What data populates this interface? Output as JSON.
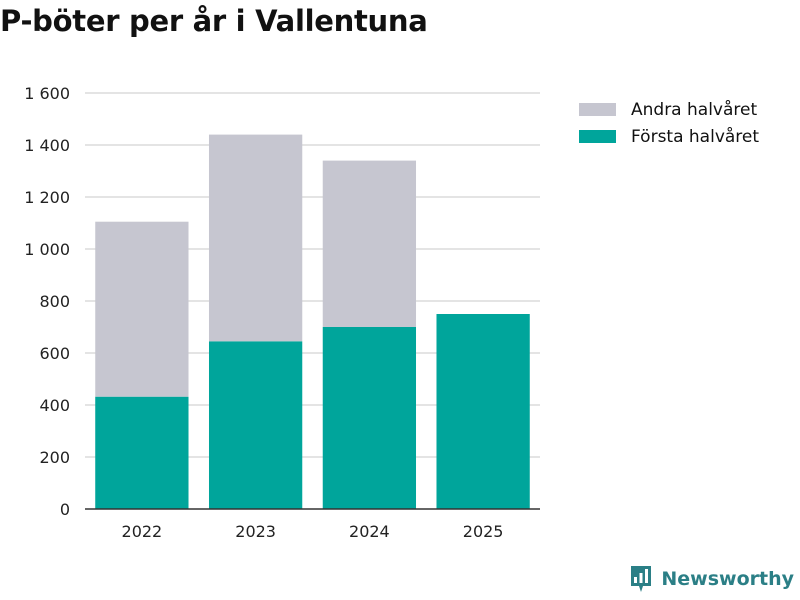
{
  "title": "P-böter per år i Vallentuna",
  "legend": {
    "items": [
      {
        "label": "Andra halvåret",
        "color": "#c6c6d0"
      },
      {
        "label": "Första halvåret",
        "color": "#00a59b"
      }
    ]
  },
  "brand": {
    "name": "Newsworthy",
    "icon": "newsworthy-logo-icon",
    "color": "#2b7f86"
  },
  "chart_data": {
    "type": "bar",
    "stacked": true,
    "title": "P-böter per år i Vallentuna",
    "xlabel": "",
    "ylabel": "",
    "categories": [
      "2022",
      "2023",
      "2024",
      "2025"
    ],
    "series": [
      {
        "name": "Första halvåret",
        "color": "#00a59b",
        "values": [
          432,
          645,
          700,
          750
        ]
      },
      {
        "name": "Andra halvåret",
        "color": "#c6c6d0",
        "values": [
          673,
          795,
          640,
          0
        ]
      }
    ],
    "ylim": [
      0,
      1600
    ],
    "yticks": [
      0,
      200,
      400,
      600,
      800,
      1000,
      1200,
      1400,
      1600
    ],
    "ytick_labels": [
      "0",
      "200",
      "400",
      "600",
      "800",
      "1 000",
      "1 200",
      "1 400",
      "1 600"
    ],
    "grid": true,
    "legend_position": "top-right"
  }
}
